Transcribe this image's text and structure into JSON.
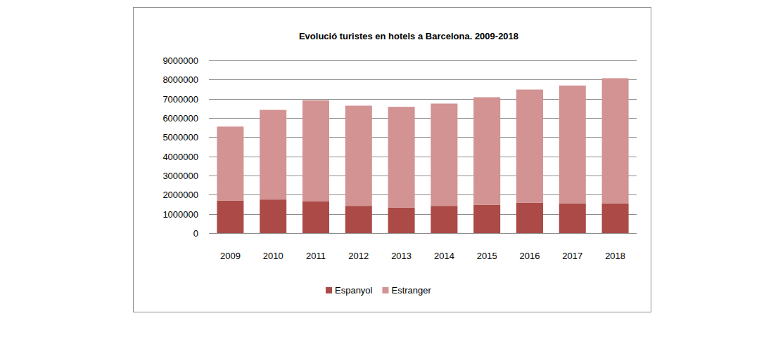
{
  "chart_data": {
    "type": "bar",
    "title": "Evolució turistes en hotels  a Barcelona. 2009-2018",
    "categories": [
      "2009",
      "2010",
      "2011",
      "2012",
      "2013",
      "2014",
      "2015",
      "2016",
      "2017",
      "2018"
    ],
    "series": [
      {
        "name": "Espanyol",
        "color": "#ab4a47",
        "values": [
          1700000,
          1750000,
          1650000,
          1420000,
          1320000,
          1420000,
          1480000,
          1580000,
          1540000,
          1540000
        ]
      },
      {
        "name": "Estranger",
        "color": "#d29392",
        "values": [
          3850000,
          4670000,
          5270000,
          5220000,
          5260000,
          5330000,
          5600000,
          5900000,
          6150000,
          6530000
        ]
      }
    ],
    "stacked": true,
    "ylim": [
      0,
      9000000
    ],
    "yticks": [
      0,
      1000000,
      2000000,
      3000000,
      4000000,
      5000000,
      6000000,
      7000000,
      8000000,
      9000000
    ],
    "grid": true,
    "legend": "bottom"
  }
}
